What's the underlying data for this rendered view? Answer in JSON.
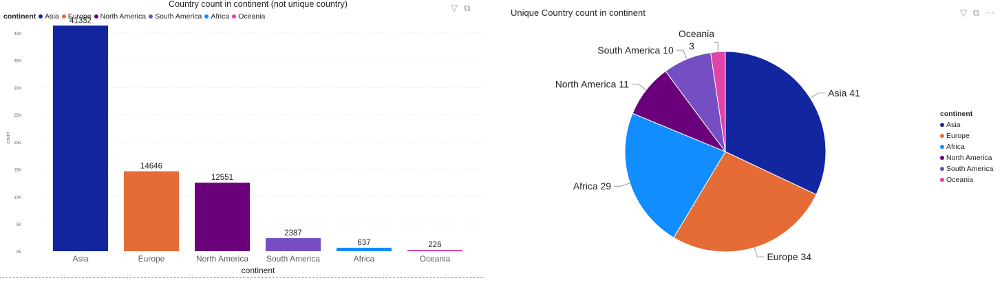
{
  "bar_visual": {
    "title": "Country count in continent (not unique country)",
    "legend_title": "continent",
    "legend": [
      {
        "label": "Asia",
        "color": "#1226A0"
      },
      {
        "label": "Europe",
        "color": "#E66C37"
      },
      {
        "label": "North America",
        "color": "#6B007B"
      },
      {
        "label": "South America",
        "color": "#744EC2"
      },
      {
        "label": "Africa",
        "color": "#118DFF"
      },
      {
        "label": "Oceania",
        "color": "#E044A7"
      }
    ],
    "icons": [
      "filter-icon",
      "focus-mode-icon",
      "more-options-icon"
    ]
  },
  "pie_visual": {
    "title": "Unique Country count in continent",
    "legend_title": "continent",
    "legend": [
      {
        "label": "Asia",
        "color": "#1226A0"
      },
      {
        "label": "Europe",
        "color": "#E66C37"
      },
      {
        "label": "Africa",
        "color": "#118DFF"
      },
      {
        "label": "North America",
        "color": "#6B007B"
      },
      {
        "label": "South America",
        "color": "#744EC2"
      },
      {
        "label": "Oceania",
        "color": "#E044A7"
      }
    ],
    "icons": [
      "filter-icon",
      "focus-mode-icon",
      "more-options-icon"
    ]
  },
  "icon_glyphs": {
    "filter": "▽",
    "focus": "⧉",
    "more": "⋯"
  },
  "chart_data": [
    {
      "type": "bar",
      "title": "Country count in continent (not unique country)",
      "xlabel": "continent",
      "ylabel": "count",
      "categories": [
        "Asia",
        "Europe",
        "North America",
        "South America",
        "Africa",
        "Oceania"
      ],
      "values": [
        41332,
        14646,
        12551,
        2387,
        637,
        226
      ],
      "colors": [
        "#1226A0",
        "#E66C37",
        "#6B007B",
        "#744EC2",
        "#118DFF",
        "#E044A7"
      ],
      "ylim": [
        0,
        42000
      ],
      "yticks": [
        0,
        5000,
        10000,
        15000,
        20000,
        25000,
        30000,
        35000,
        40000
      ],
      "ytick_labels": [
        "0K",
        "5K",
        "10K",
        "15K",
        "20K",
        "25K",
        "30K",
        "35K",
        "40K"
      ],
      "grid": true,
      "legend_position": "top-left"
    },
    {
      "type": "pie",
      "title": "Unique Country count in continent",
      "categories": [
        "Asia",
        "Europe",
        "Africa",
        "North America",
        "South America",
        "Oceania"
      ],
      "values": [
        41,
        34,
        29,
        11,
        10,
        3
      ],
      "colors": [
        "#1226A0",
        "#E66C37",
        "#118DFF",
        "#6B007B",
        "#744EC2",
        "#E044A7"
      ],
      "data_labels": [
        "Asia 41",
        "Europe 34",
        "Africa 29",
        "North America 11",
        "South America 10",
        "Oceania 3"
      ],
      "legend_position": "right"
    }
  ]
}
